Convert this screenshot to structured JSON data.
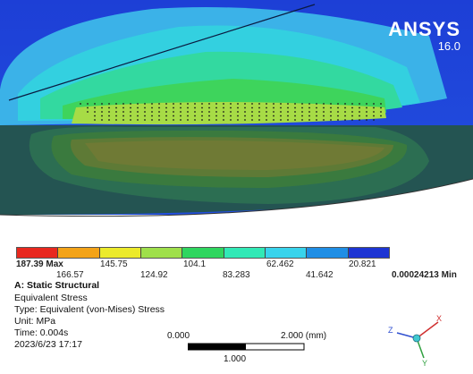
{
  "brand": {
    "name": "ANSYS",
    "version": "16.0"
  },
  "legend": {
    "colors": [
      "#e8281e",
      "#f3a318",
      "#ecea2b",
      "#9fe04b",
      "#2fd65f",
      "#31e9b6",
      "#38d3ec",
      "#1f8ee5",
      "#1d35d3"
    ],
    "max_label": "187.39 Max",
    "min_label": "0.00024213 Min",
    "upper_values": [
      "145.75",
      "104.1",
      "62.462",
      "20.821"
    ],
    "lower_values": [
      "166.57",
      "124.92",
      "83.283",
      "41.642"
    ]
  },
  "info": {
    "title": "A: Static Structural",
    "result": "Equivalent Stress",
    "type": "Type: Equivalent (von-Mises) Stress",
    "unit": "Unit: MPa",
    "time": "Time:  0.004s",
    "date": "2023/6/23 17:17"
  },
  "scale": {
    "left": "0.000",
    "right": "2.000 (mm)",
    "mid": "1.000"
  },
  "triad": {
    "x": "X",
    "y": "Y",
    "z": "Z"
  }
}
